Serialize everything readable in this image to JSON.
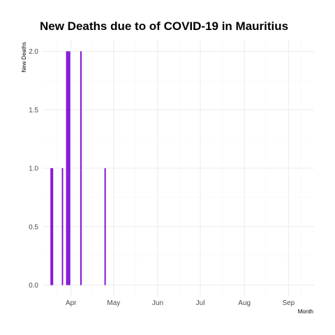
{
  "chart_data": {
    "type": "bar",
    "title": "New Deaths due to of COVID-19 in Mauritius",
    "xlabel": "Month",
    "ylabel": "New Deaths",
    "ylim": [
      0,
      2
    ],
    "xlim": [
      "2020-03-12",
      "2020-09-19"
    ],
    "y_ticks": [
      "0.0",
      "0.5",
      "1.0",
      "1.5",
      "2.0"
    ],
    "x_ticks": [
      {
        "label": "Apr",
        "date": "2020-04-01"
      },
      {
        "label": "May",
        "date": "2020-05-01"
      },
      {
        "label": "Jun",
        "date": "2020-06-01"
      },
      {
        "label": "Jul",
        "date": "2020-07-01"
      },
      {
        "label": "Aug",
        "date": "2020-08-01"
      },
      {
        "label": "Sep",
        "date": "2020-09-01"
      }
    ],
    "grid": true,
    "bar_color": "#7b00d4",
    "points": [
      {
        "date": "2020-03-18",
        "value": 1
      },
      {
        "date": "2020-03-19",
        "value": 1
      },
      {
        "date": "2020-03-26",
        "value": 1
      },
      {
        "date": "2020-03-29",
        "value": 2
      },
      {
        "date": "2020-03-30",
        "value": 2
      },
      {
        "date": "2020-03-31",
        "value": 2
      },
      {
        "date": "2020-04-08",
        "value": 2
      },
      {
        "date": "2020-04-25",
        "value": 1
      }
    ]
  }
}
